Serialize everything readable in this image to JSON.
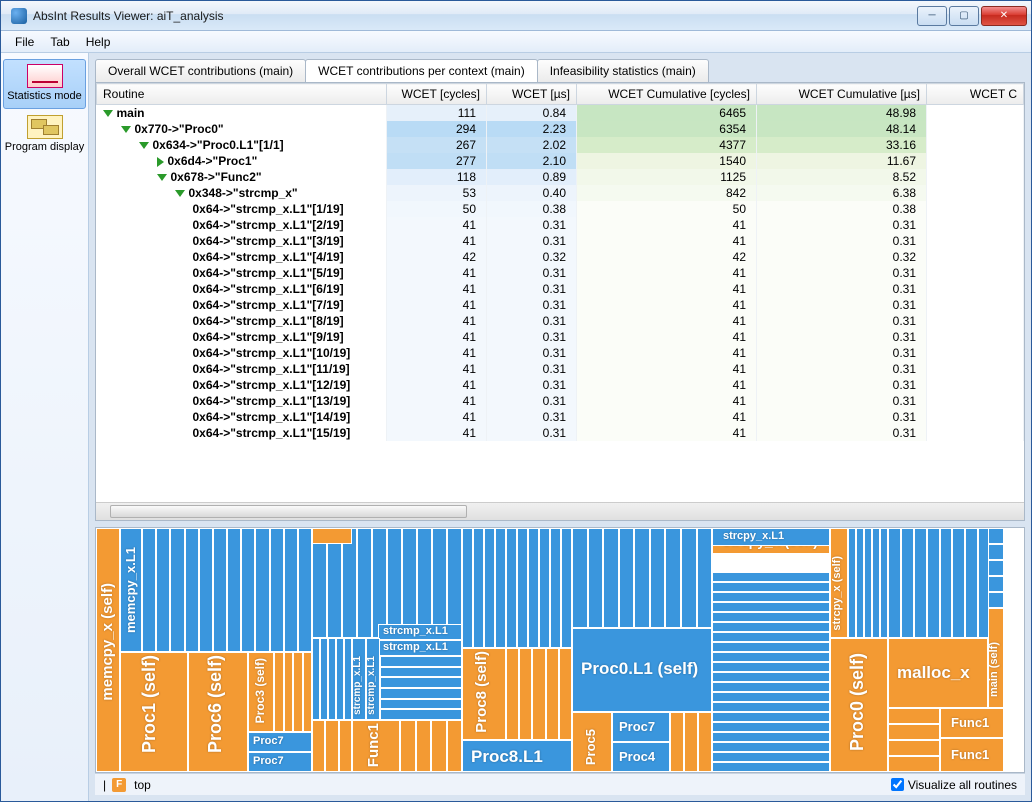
{
  "window": {
    "title": "AbsInt Results Viewer: aiT_analysis"
  },
  "menu": {
    "file": "File",
    "tab": "Tab",
    "help": "Help"
  },
  "sidebar": {
    "stats": "Statistics mode",
    "prog": "Program display"
  },
  "tabs": {
    "t1": "Overall WCET contributions (main)",
    "t2": "WCET contributions per context (main)",
    "t3": "Infeasibility statistics (main)"
  },
  "columns": {
    "c0": "Routine",
    "c1": "WCET [cycles]",
    "c2": "WCET [µs]",
    "c3": "WCET Cumulative [cycles]",
    "c4": "WCET Cumulative [µs]",
    "c5": "WCET C"
  },
  "rows": [
    {
      "indent": 0,
      "tri": "down",
      "label": "main",
      "c1": "111",
      "c2": "0.84",
      "c3": "6465",
      "c4": "48.98",
      "bgA": "#e6f0fa",
      "bgB": "#c7e6c2"
    },
    {
      "indent": 1,
      "tri": "down",
      "label": "0x770->\"Proc0\"",
      "c1": "294",
      "c2": "2.23",
      "c3": "6354",
      "c4": "48.14",
      "bgA": "#b9dbf5",
      "bgB": "#c8e6c2"
    },
    {
      "indent": 2,
      "tri": "down",
      "label": "0x634->\"Proc0.L1\"[1/1]",
      "c1": "267",
      "c2": "2.02",
      "c3": "4377",
      "c4": "33.16",
      "bgA": "#c5e0f5",
      "bgB": "#d6ecc9"
    },
    {
      "indent": 3,
      "tri": "right",
      "label": "0x6d4->\"Proc1\"",
      "c1": "277",
      "c2": "2.10",
      "c3": "1540",
      "c4": "11.67",
      "bgA": "#c0def5",
      "bgB": "#eef5e2"
    },
    {
      "indent": 3,
      "tri": "down",
      "label": "0x678->\"Func2\"",
      "c1": "118",
      "c2": "0.89",
      "c3": "1125",
      "c4": "8.52",
      "bgA": "#e2eefb",
      "bgB": "#f2f8ea"
    },
    {
      "indent": 4,
      "tri": "down",
      "label": "0x348->\"strcmp_x\"",
      "c1": "53",
      "c2": "0.40",
      "c3": "842",
      "c4": "6.38",
      "bgA": "#edf4fc",
      "bgB": "#f5faf0"
    },
    {
      "indent": 5,
      "tri": "",
      "label": "0x64->\"strcmp_x.L1\"[1/19]",
      "c1": "50",
      "c2": "0.38",
      "c3": "50",
      "c4": "0.38",
      "bgA": "#f1f7fd",
      "bgB": "#fbfdf8"
    },
    {
      "indent": 5,
      "tri": "",
      "label": "0x64->\"strcmp_x.L1\"[2/19]",
      "c1": "41",
      "c2": "0.31",
      "c3": "41",
      "c4": "0.31",
      "bgA": "#f3f8fd",
      "bgB": "#fbfdf8"
    },
    {
      "indent": 5,
      "tri": "",
      "label": "0x64->\"strcmp_x.L1\"[3/19]",
      "c1": "41",
      "c2": "0.31",
      "c3": "41",
      "c4": "0.31",
      "bgA": "#f3f8fd",
      "bgB": "#fbfdf8"
    },
    {
      "indent": 5,
      "tri": "",
      "label": "0x64->\"strcmp_x.L1\"[4/19]",
      "c1": "42",
      "c2": "0.32",
      "c3": "42",
      "c4": "0.32",
      "bgA": "#f3f8fd",
      "bgB": "#fbfdf8"
    },
    {
      "indent": 5,
      "tri": "",
      "label": "0x64->\"strcmp_x.L1\"[5/19]",
      "c1": "41",
      "c2": "0.31",
      "c3": "41",
      "c4": "0.31",
      "bgA": "#f3f8fd",
      "bgB": "#fbfdf8"
    },
    {
      "indent": 5,
      "tri": "",
      "label": "0x64->\"strcmp_x.L1\"[6/19]",
      "c1": "41",
      "c2": "0.31",
      "c3": "41",
      "c4": "0.31",
      "bgA": "#f3f8fd",
      "bgB": "#fbfdf8"
    },
    {
      "indent": 5,
      "tri": "",
      "label": "0x64->\"strcmp_x.L1\"[7/19]",
      "c1": "41",
      "c2": "0.31",
      "c3": "41",
      "c4": "0.31",
      "bgA": "#f3f8fd",
      "bgB": "#fbfdf8"
    },
    {
      "indent": 5,
      "tri": "",
      "label": "0x64->\"strcmp_x.L1\"[8/19]",
      "c1": "41",
      "c2": "0.31",
      "c3": "41",
      "c4": "0.31",
      "bgA": "#f3f8fd",
      "bgB": "#fbfdf8"
    },
    {
      "indent": 5,
      "tri": "",
      "label": "0x64->\"strcmp_x.L1\"[9/19]",
      "c1": "41",
      "c2": "0.31",
      "c3": "41",
      "c4": "0.31",
      "bgA": "#f3f8fd",
      "bgB": "#fbfdf8"
    },
    {
      "indent": 5,
      "tri": "",
      "label": "0x64->\"strcmp_x.L1\"[10/19]",
      "c1": "41",
      "c2": "0.31",
      "c3": "41",
      "c4": "0.31",
      "bgA": "#f3f8fd",
      "bgB": "#fbfdf8"
    },
    {
      "indent": 5,
      "tri": "",
      "label": "0x64->\"strcmp_x.L1\"[11/19]",
      "c1": "41",
      "c2": "0.31",
      "c3": "41",
      "c4": "0.31",
      "bgA": "#f3f8fd",
      "bgB": "#fbfdf8"
    },
    {
      "indent": 5,
      "tri": "",
      "label": "0x64->\"strcmp_x.L1\"[12/19]",
      "c1": "41",
      "c2": "0.31",
      "c3": "41",
      "c4": "0.31",
      "bgA": "#f3f8fd",
      "bgB": "#fbfdf8"
    },
    {
      "indent": 5,
      "tri": "",
      "label": "0x64->\"strcmp_x.L1\"[13/19]",
      "c1": "41",
      "c2": "0.31",
      "c3": "41",
      "c4": "0.31",
      "bgA": "#f3f8fd",
      "bgB": "#fbfdf8"
    },
    {
      "indent": 5,
      "tri": "",
      "label": "0x64->\"strcmp_x.L1\"[14/19]",
      "c1": "41",
      "c2": "0.31",
      "c3": "41",
      "c4": "0.31",
      "bgA": "#f3f8fd",
      "bgB": "#fbfdf8"
    },
    {
      "indent": 5,
      "tri": "",
      "label": "0x64->\"strcmp_x.L1\"[15/19]",
      "c1": "41",
      "c2": "0.31",
      "c3": "41",
      "c4": "0.31",
      "bgA": "#f3f8fd",
      "bgB": "#fbfdf8"
    }
  ],
  "treemap": {
    "colors": {
      "orange": "#f39a33",
      "blue": "#3a96dd"
    },
    "labels": {
      "memcpy": "memcpy_x (self)",
      "memcpy2": "memcpy_x.L1",
      "proc1": "Proc1 (self)",
      "proc6": "Proc6 (self)",
      "proc3": "Proc3 (self)",
      "proc7a": "Proc7",
      "proc7b": "Proc7",
      "func1a": "Func1",
      "strcmpx": "strcmp_x.L1",
      "strcmpx2": "strcmp_x.L1",
      "strcmpxv": "strcmp_x.L1",
      "strcmpxv2": "strcmp_x.L1",
      "proc8s": "Proc8 (self)",
      "proc8l1": "Proc8.L1",
      "proc0l1": "Proc0.L1 (self)",
      "proc5": "Proc5",
      "proc7c": "Proc7",
      "proc4": "Proc4",
      "strcpy": "strcpy_x (self)",
      "strcpyl1": "strcpy_x.L1",
      "strcpyv": "strcpy_x (self)",
      "proc0": "Proc0 (self)",
      "mallocx": "malloc_x",
      "func1b": "Func1",
      "func1c": "Func1",
      "main": "main (self)"
    }
  },
  "status": {
    "sep": "|",
    "fbadge": "F",
    "top": "top",
    "visualize": "Visualize all routines"
  }
}
